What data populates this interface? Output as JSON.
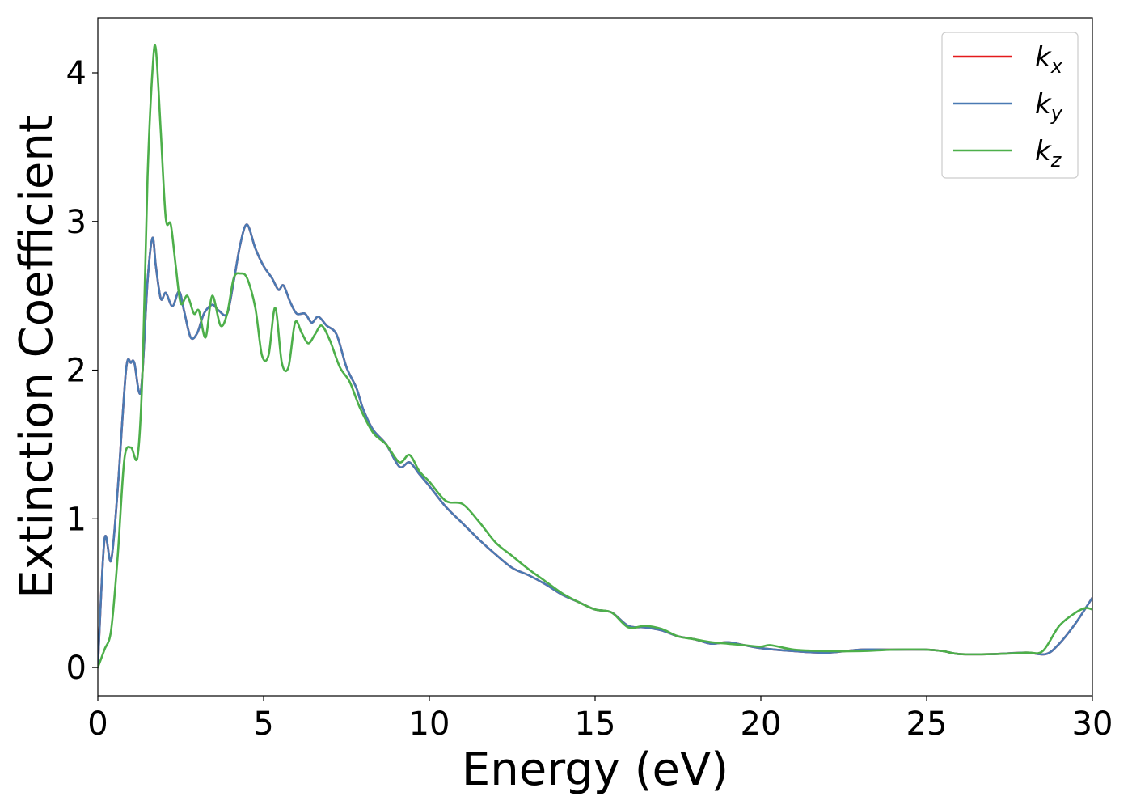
{
  "chart_data": {
    "type": "line",
    "xlabel": "Energy (eV)",
    "ylabel": "Extinction Coefficient",
    "xlim": [
      0,
      30
    ],
    "ylim": [
      -0.19,
      4.37
    ],
    "xticks": [
      "0",
      "5",
      "10",
      "15",
      "20",
      "25",
      "30"
    ],
    "yticks": [
      "0",
      "1",
      "2",
      "3",
      "4"
    ],
    "grid": false,
    "legend_position": "top-right",
    "series": [
      {
        "name": "k_x",
        "legend_base": "k",
        "legend_sub": "x",
        "color": "#e41a1c",
        "x": [
          0.0,
          0.2,
          0.4,
          0.6,
          0.85,
          1.0,
          1.1,
          1.3,
          1.5,
          1.65,
          1.75,
          1.9,
          2.05,
          2.25,
          2.45,
          2.6,
          2.8,
          3.0,
          3.2,
          3.45,
          3.65,
          3.9,
          4.1,
          4.3,
          4.5,
          4.75,
          5.0,
          5.25,
          5.45,
          5.6,
          5.8,
          6.0,
          6.25,
          6.45,
          6.65,
          6.9,
          7.2,
          7.5,
          7.8,
          8.0,
          8.3,
          8.7,
          9.1,
          9.4,
          9.7,
          10.0,
          10.5,
          11.0,
          11.5,
          12.0,
          12.5,
          13.0,
          13.5,
          14.0,
          14.5,
          15.0,
          15.5,
          16.0,
          16.5,
          17.0,
          17.5,
          18.0,
          18.5,
          19.0,
          19.5,
          20.0,
          21.0,
          22.0,
          23.0,
          24.0,
          25.0,
          25.5,
          26.0,
          27.0,
          28.0,
          28.6,
          29.0,
          29.5,
          30.0
        ],
        "y": [
          0.0,
          0.86,
          0.72,
          1.2,
          2.0,
          2.05,
          2.05,
          1.86,
          2.6,
          2.89,
          2.7,
          2.48,
          2.52,
          2.43,
          2.53,
          2.4,
          2.22,
          2.25,
          2.38,
          2.44,
          2.4,
          2.38,
          2.6,
          2.85,
          2.98,
          2.82,
          2.7,
          2.62,
          2.54,
          2.57,
          2.46,
          2.38,
          2.38,
          2.32,
          2.36,
          2.3,
          2.24,
          2.02,
          1.88,
          1.74,
          1.6,
          1.5,
          1.35,
          1.38,
          1.3,
          1.22,
          1.08,
          0.97,
          0.86,
          0.76,
          0.67,
          0.62,
          0.56,
          0.49,
          0.44,
          0.39,
          0.37,
          0.28,
          0.27,
          0.25,
          0.21,
          0.19,
          0.16,
          0.17,
          0.15,
          0.13,
          0.11,
          0.1,
          0.12,
          0.12,
          0.12,
          0.11,
          0.09,
          0.09,
          0.1,
          0.09,
          0.16,
          0.3,
          0.47
        ]
      },
      {
        "name": "k_y",
        "legend_base": "k",
        "legend_sub": "y",
        "color": "#4a7ab3",
        "x": [
          0.0,
          0.2,
          0.4,
          0.6,
          0.85,
          1.0,
          1.1,
          1.3,
          1.5,
          1.65,
          1.75,
          1.9,
          2.05,
          2.25,
          2.45,
          2.6,
          2.8,
          3.0,
          3.2,
          3.45,
          3.65,
          3.9,
          4.1,
          4.3,
          4.5,
          4.75,
          5.0,
          5.25,
          5.45,
          5.6,
          5.8,
          6.0,
          6.25,
          6.45,
          6.65,
          6.9,
          7.2,
          7.5,
          7.8,
          8.0,
          8.3,
          8.7,
          9.1,
          9.4,
          9.7,
          10.0,
          10.5,
          11.0,
          11.5,
          12.0,
          12.5,
          13.0,
          13.5,
          14.0,
          14.5,
          15.0,
          15.5,
          16.0,
          16.5,
          17.0,
          17.5,
          18.0,
          18.5,
          19.0,
          19.5,
          20.0,
          21.0,
          22.0,
          23.0,
          24.0,
          25.0,
          25.5,
          26.0,
          27.0,
          28.0,
          28.6,
          29.0,
          29.5,
          30.0
        ],
        "y": [
          0.0,
          0.86,
          0.72,
          1.2,
          2.0,
          2.05,
          2.05,
          1.86,
          2.6,
          2.89,
          2.7,
          2.48,
          2.52,
          2.43,
          2.53,
          2.4,
          2.22,
          2.25,
          2.38,
          2.44,
          2.4,
          2.38,
          2.6,
          2.85,
          2.98,
          2.82,
          2.7,
          2.62,
          2.54,
          2.57,
          2.46,
          2.38,
          2.38,
          2.32,
          2.36,
          2.3,
          2.24,
          2.02,
          1.88,
          1.74,
          1.6,
          1.5,
          1.35,
          1.38,
          1.3,
          1.22,
          1.08,
          0.97,
          0.86,
          0.76,
          0.67,
          0.62,
          0.56,
          0.49,
          0.44,
          0.39,
          0.37,
          0.28,
          0.27,
          0.25,
          0.21,
          0.19,
          0.16,
          0.17,
          0.15,
          0.13,
          0.11,
          0.1,
          0.12,
          0.12,
          0.12,
          0.11,
          0.09,
          0.09,
          0.1,
          0.09,
          0.16,
          0.3,
          0.47
        ]
      },
      {
        "name": "k_z",
        "legend_base": "k",
        "legend_sub": "z",
        "color": "#4daf4a",
        "x": [
          0.0,
          0.2,
          0.4,
          0.6,
          0.8,
          1.0,
          1.2,
          1.35,
          1.5,
          1.65,
          1.75,
          1.9,
          2.05,
          2.2,
          2.35,
          2.5,
          2.7,
          2.9,
          3.05,
          3.25,
          3.45,
          3.7,
          3.9,
          4.1,
          4.3,
          4.5,
          4.75,
          4.95,
          5.15,
          5.35,
          5.55,
          5.75,
          5.95,
          6.15,
          6.35,
          6.55,
          6.75,
          7.0,
          7.3,
          7.6,
          7.9,
          8.3,
          8.7,
          9.1,
          9.4,
          9.7,
          10.0,
          10.5,
          11.0,
          11.5,
          12.0,
          12.5,
          13.0,
          13.5,
          14.0,
          14.5,
          15.0,
          15.5,
          16.0,
          16.5,
          17.0,
          17.5,
          18.0,
          18.5,
          19.0,
          19.5,
          20.0,
          20.3,
          21.0,
          22.0,
          23.0,
          24.0,
          25.0,
          25.5,
          26.0,
          27.0,
          28.0,
          28.5,
          29.0,
          29.5,
          29.8,
          30.0
        ],
        "y": [
          0.0,
          0.12,
          0.25,
          0.75,
          1.4,
          1.48,
          1.42,
          2.0,
          3.3,
          4.02,
          4.16,
          3.6,
          3.02,
          2.98,
          2.7,
          2.45,
          2.5,
          2.38,
          2.4,
          2.22,
          2.5,
          2.3,
          2.38,
          2.62,
          2.65,
          2.62,
          2.42,
          2.1,
          2.1,
          2.42,
          2.05,
          2.02,
          2.32,
          2.25,
          2.18,
          2.24,
          2.3,
          2.2,
          2.02,
          1.92,
          1.75,
          1.58,
          1.5,
          1.38,
          1.43,
          1.32,
          1.25,
          1.12,
          1.1,
          0.98,
          0.84,
          0.75,
          0.66,
          0.58,
          0.5,
          0.44,
          0.39,
          0.37,
          0.27,
          0.28,
          0.26,
          0.21,
          0.19,
          0.17,
          0.16,
          0.15,
          0.14,
          0.15,
          0.12,
          0.11,
          0.11,
          0.12,
          0.12,
          0.11,
          0.09,
          0.09,
          0.1,
          0.11,
          0.28,
          0.37,
          0.4,
          0.39
        ]
      }
    ]
  }
}
